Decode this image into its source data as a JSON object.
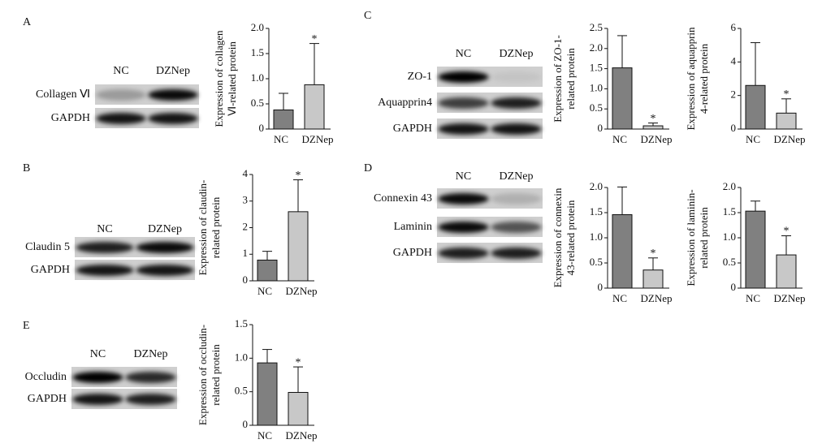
{
  "panels": [
    {
      "label": "A",
      "lanes": [
        "NC",
        "DZNep"
      ],
      "proteins": [
        "Collagen Ⅵ",
        "GAPDH"
      ]
    },
    {
      "label": "B",
      "lanes": [
        "NC",
        "DZNep"
      ],
      "proteins": [
        "Claudin 5",
        "GAPDH"
      ]
    },
    {
      "label": "C",
      "lanes": [
        "NC",
        "DZNep"
      ],
      "proteins": [
        "ZO-1",
        "Aquapprin4",
        "GAPDH"
      ]
    },
    {
      "label": "D",
      "lanes": [
        "NC",
        "DZNep"
      ],
      "proteins": [
        "Connexin 43",
        "Laminin",
        "GAPDH"
      ]
    },
    {
      "label": "E",
      "lanes": [
        "NC",
        "DZNep"
      ],
      "proteins": [
        "Occludin",
        "GAPDH"
      ]
    }
  ],
  "chart_data": [
    {
      "type": "bar",
      "y_label": [
        "Expression of collagen",
        "Ⅵ-related protein"
      ],
      "categories": [
        "NC",
        "DZNep"
      ],
      "values": [
        0.38,
        0.88
      ],
      "errors": [
        0.33,
        0.82
      ],
      "colors": [
        "#808080",
        "#c8c8c8"
      ],
      "annotation": "*",
      "ylim": [
        0,
        2.0
      ],
      "yticks": [
        0,
        0.5,
        {
          "value": 1.0,
          "label": "1.0"
        },
        1.5,
        {
          "value": 2.0,
          "label": "2.0"
        }
      ]
    },
    {
      "type": "bar",
      "y_label": [
        "Expression of claudin-",
        "related protein"
      ],
      "categories": [
        "NC",
        "DZNep"
      ],
      "values": [
        0.78,
        2.6
      ],
      "errors": [
        0.33,
        1.2
      ],
      "colors": [
        "#808080",
        "#c8c8c8"
      ],
      "annotation": "*",
      "ylim": [
        0,
        4
      ],
      "yticks": [
        0,
        1,
        2,
        3,
        4
      ]
    },
    {
      "type": "bar",
      "y_label": [
        "Expression of ZO-1-",
        "related protein"
      ],
      "categories": [
        "NC",
        "DZNep"
      ],
      "values": [
        1.52,
        0.08
      ],
      "errors": [
        0.8,
        0.07
      ],
      "colors": [
        "#808080",
        "#c8c8c8"
      ],
      "annotation": "*",
      "ylim": [
        0,
        2.5
      ],
      "yticks": [
        0,
        0.5,
        {
          "value": 1.0,
          "label": "1.0"
        },
        1.5,
        {
          "value": 2.0,
          "label": "2.0"
        },
        2.5
      ]
    },
    {
      "type": "bar",
      "y_label": [
        "Expression of aquapprin",
        "4-related protein"
      ],
      "categories": [
        "NC",
        "DZNep"
      ],
      "values": [
        2.6,
        0.95
      ],
      "errors": [
        2.55,
        0.85
      ],
      "colors": [
        "#808080",
        "#c8c8c8"
      ],
      "annotation": "*",
      "ylim": [
        0,
        6
      ],
      "yticks": [
        0,
        2,
        4,
        6
      ]
    },
    {
      "type": "bar",
      "y_label": [
        "Expression of connexin",
        "43-related protein"
      ],
      "categories": [
        "NC",
        "DZNep"
      ],
      "values": [
        1.46,
        0.36
      ],
      "errors": [
        0.55,
        0.24
      ],
      "colors": [
        "#808080",
        "#c8c8c8"
      ],
      "annotation": "*",
      "ylim": [
        0,
        2.0
      ],
      "yticks": [
        0,
        0.5,
        {
          "value": 1.0,
          "label": "1.0"
        },
        1.5,
        {
          "value": 2.0,
          "label": "2.0"
        }
      ]
    },
    {
      "type": "bar",
      "y_label": [
        "Expression of laminin-",
        "related protein"
      ],
      "categories": [
        "NC",
        "DZNep"
      ],
      "values": [
        1.53,
        0.66
      ],
      "errors": [
        0.2,
        0.38
      ],
      "colors": [
        "#808080",
        "#c8c8c8"
      ],
      "annotation": "*",
      "ylim": [
        0,
        2.0
      ],
      "yticks": [
        0,
        0.5,
        {
          "value": 1.0,
          "label": "1.0"
        },
        1.5,
        {
          "value": 2.0,
          "label": "2.0"
        }
      ]
    },
    {
      "type": "bar",
      "y_label": [
        "Expression of occludin-",
        "related protein"
      ],
      "categories": [
        "NC",
        "DZNep"
      ],
      "values": [
        0.93,
        0.49
      ],
      "errors": [
        0.2,
        0.38
      ],
      "colors": [
        "#808080",
        "#c8c8c8"
      ],
      "annotation": "*",
      "ylim": [
        0,
        1.5
      ],
      "yticks": [
        0,
        0.5,
        {
          "value": 1.0,
          "label": "1.0"
        },
        1.5
      ]
    }
  ]
}
